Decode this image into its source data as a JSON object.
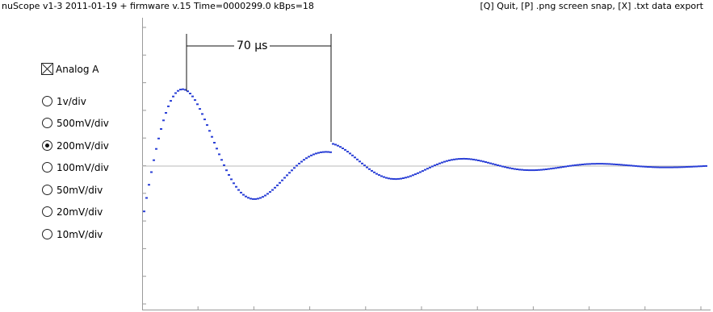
{
  "topbar": {
    "status": "nuScope v1-3 2011-01-19 + firmware v.15 Time=0000299.0 kBps=18",
    "hint": "[Q] Quit, [P] .png screen snap, [X] .txt data export"
  },
  "panel": {
    "channel": {
      "label": "Analog A",
      "checked": true
    },
    "scales": [
      {
        "label": "1v/div",
        "selected": false
      },
      {
        "label": "500mV/div",
        "selected": false
      },
      {
        "label": "200mV/div",
        "selected": true
      },
      {
        "label": "100mV/div",
        "selected": false
      },
      {
        "label": "50mV/div",
        "selected": false
      },
      {
        "label": "20mV/div",
        "selected": false
      },
      {
        "label": "10mV/div",
        "selected": false
      }
    ]
  },
  "measurement": {
    "label": "70 µs"
  },
  "colors": {
    "trace": "#2a3fd6",
    "axis": "#9a9a9a",
    "baseline": "#b8b8b8"
  }
}
